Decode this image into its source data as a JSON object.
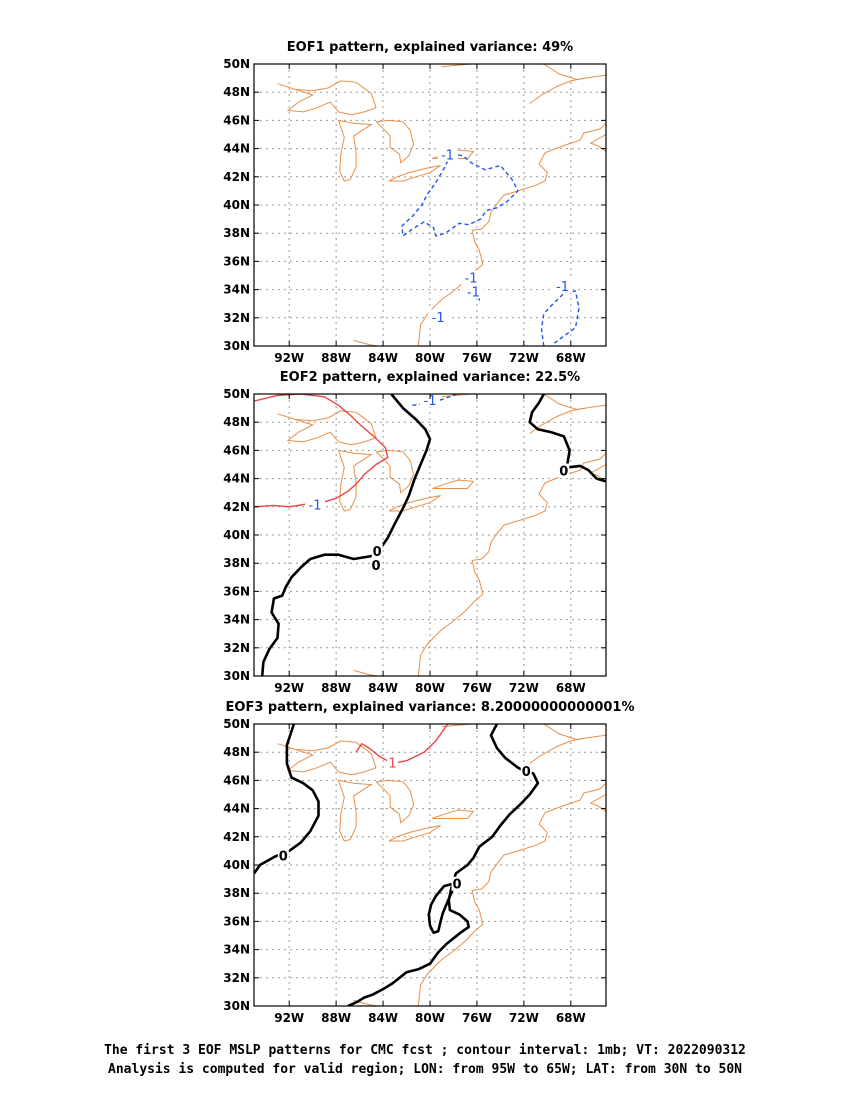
{
  "chart_data": [
    {
      "type": "contour",
      "title": "EOF1 pattern, explained variance: 49%",
      "contour_labels": [
        {
          "text": "-1",
          "lon": -78.5,
          "lat": 43.5
        },
        {
          "text": "-1",
          "lon": -76.5,
          "lat": 34.8
        },
        {
          "text": "-1",
          "lon": -76.3,
          "lat": 33.8
        },
        {
          "text": "-1",
          "lon": -79.3,
          "lat": 32.0
        },
        {
          "text": "-1",
          "lon": -68.7,
          "lat": 34.2
        }
      ],
      "contours": [
        {
          "level": -1,
          "style": "dashed",
          "color": "#2255ee",
          "points": [
            [
              -78.2,
              43.6
            ],
            [
              -77.2,
              43.5
            ],
            [
              -76.5,
              43.0
            ],
            [
              -75.3,
              42.5
            ],
            [
              -74.0,
              42.8
            ],
            [
              -73.0,
              41.8
            ],
            [
              -72.5,
              41.0
            ],
            [
              -73.5,
              40.2
            ],
            [
              -74.3,
              39.8
            ],
            [
              -75.2,
              39.6
            ],
            [
              -75.7,
              39.0
            ],
            [
              -76.7,
              38.6
            ],
            [
              -77.5,
              38.7
            ],
            [
              -78.7,
              38.0
            ],
            [
              -79.5,
              37.8
            ],
            [
              -79.7,
              38.4
            ],
            [
              -80.5,
              38.8
            ],
            [
              -81.5,
              38.3
            ],
            [
              -82.3,
              37.8
            ],
            [
              -82.4,
              38.5
            ],
            [
              -81.5,
              39.2
            ],
            [
              -80.7,
              40.0
            ],
            [
              -80.2,
              40.8
            ],
            [
              -79.5,
              41.6
            ],
            [
              -78.8,
              42.6
            ],
            [
              -78.2,
              43.6
            ]
          ]
        },
        {
          "level": -1,
          "style": "dashed",
          "color": "#2255ee",
          "points": [
            [
              -75.8,
              33.5
            ],
            [
              -75.8,
              33.0
            ]
          ]
        },
        {
          "level": -1,
          "style": "dashed",
          "color": "#2255ee",
          "points": [
            [
              -70.3,
              30.0
            ],
            [
              -70.5,
              31.2
            ],
            [
              -70.3,
              32.3
            ],
            [
              -69.5,
              33.0
            ],
            [
              -68.5,
              33.8
            ],
            [
              -67.6,
              33.9
            ],
            [
              -67.3,
              32.7
            ],
            [
              -67.6,
              31.3
            ],
            [
              -68.6,
              30.7
            ],
            [
              -69.4,
              30.2
            ],
            [
              -69.6,
              30.0
            ]
          ]
        }
      ]
    },
    {
      "type": "contour",
      "title": "EOF2 pattern, explained variance: 22.5%",
      "contour_labels": [
        {
          "text": "-1",
          "lon": -80.0,
          "lat": 49.5
        },
        {
          "text": "-1",
          "lon": -89.8,
          "lat": 42.1
        },
        {
          "text": "0",
          "lon": -84.5,
          "lat": 38.8
        },
        {
          "text": "0",
          "lon": -84.6,
          "lat": 37.8
        },
        {
          "text": "0",
          "lon": -68.6,
          "lat": 44.5
        }
      ],
      "contours": [
        {
          "level": -1,
          "style": "dashed",
          "color": "#2255ee",
          "points": [
            [
              -81.5,
              49.2
            ],
            [
              -80.5,
              49.3
            ],
            [
              -79.0,
              49.6
            ],
            [
              -77.7,
              50.0
            ]
          ]
        },
        {
          "level": 1,
          "style": "solid",
          "color": "#ee4444",
          "points": [
            [
              -95.0,
              49.5
            ],
            [
              -93.0,
              49.9
            ],
            [
              -91.0,
              50.0
            ],
            [
              -89.0,
              49.8
            ],
            [
              -87.8,
              49.2
            ],
            [
              -86.8,
              48.5
            ],
            [
              -85.8,
              47.7
            ],
            [
              -84.8,
              47.0
            ],
            [
              -83.8,
              46.2
            ],
            [
              -83.6,
              45.5
            ],
            [
              -84.6,
              45.0
            ],
            [
              -85.6,
              44.3
            ],
            [
              -86.3,
              43.6
            ],
            [
              -87.0,
              43.1
            ],
            [
              -88.0,
              42.6
            ],
            [
              -89.2,
              42.3
            ],
            [
              -90.5,
              42.2
            ],
            [
              -92.0,
              42.0
            ],
            [
              -93.3,
              42.1
            ],
            [
              -95.0,
              42.0
            ]
          ]
        },
        {
          "level": 0,
          "style": "solid",
          "color": "#000000",
          "points": [
            [
              -83.3,
              50.0
            ],
            [
              -82.3,
              49.0
            ],
            [
              -81.2,
              48.2
            ],
            [
              -80.4,
              47.5
            ],
            [
              -80.0,
              46.8
            ],
            [
              -80.3,
              46.0
            ],
            [
              -80.8,
              45.0
            ],
            [
              -81.3,
              44.0
            ],
            [
              -81.8,
              42.8
            ],
            [
              -82.3,
              41.9
            ],
            [
              -83.0,
              40.8
            ],
            [
              -83.6,
              39.8
            ],
            [
              -84.1,
              39.2
            ],
            [
              -84.4,
              38.8
            ],
            [
              -85.0,
              38.5
            ],
            [
              -86.5,
              38.3
            ],
            [
              -87.8,
              38.6
            ],
            [
              -89.0,
              38.6
            ],
            [
              -90.2,
              38.3
            ],
            [
              -91.0,
              37.7
            ],
            [
              -91.8,
              37.0
            ],
            [
              -92.3,
              36.3
            ],
            [
              -92.6,
              35.7
            ],
            [
              -93.3,
              35.5
            ],
            [
              -93.5,
              34.5
            ],
            [
              -92.9,
              33.7
            ],
            [
              -93.0,
              32.7
            ],
            [
              -93.7,
              31.9
            ],
            [
              -94.2,
              31.0
            ],
            [
              -94.3,
              30.0
            ]
          ]
        },
        {
          "level": 0,
          "style": "solid",
          "color": "#000000",
          "points": [
            [
              -70.3,
              50.0
            ],
            [
              -70.7,
              49.4
            ],
            [
              -71.3,
              48.7
            ],
            [
              -71.5,
              48.0
            ],
            [
              -70.8,
              47.5
            ],
            [
              -69.7,
              47.3
            ],
            [
              -68.6,
              47.0
            ],
            [
              -68.1,
              46.0
            ],
            [
              -68.3,
              45.0
            ],
            [
              -68.8,
              44.5
            ],
            [
              -68.2,
              44.8
            ],
            [
              -67.2,
              44.9
            ],
            [
              -66.5,
              44.6
            ],
            [
              -65.8,
              44.0
            ],
            [
              -65.0,
              43.8
            ]
          ]
        }
      ]
    },
    {
      "type": "contour",
      "title": "EOF3 pattern, explained variance: 8.20000000000001%",
      "contour_labels": [
        {
          "text": "1",
          "lon": -83.2,
          "lat": 47.2
        },
        {
          "text": "0",
          "lon": -92.5,
          "lat": 40.6
        },
        {
          "text": "0",
          "lon": -71.8,
          "lat": 46.6
        },
        {
          "text": "0",
          "lon": -77.7,
          "lat": 38.6
        }
      ],
      "contours": [
        {
          "level": 1,
          "style": "solid",
          "color": "#ee4444",
          "points": [
            [
              -86.3,
              48.0
            ],
            [
              -85.8,
              48.6
            ],
            [
              -85.2,
              48.3
            ],
            [
              -84.3,
              47.7
            ],
            [
              -83.2,
              47.2
            ],
            [
              -82.0,
              47.4
            ],
            [
              -80.5,
              48.0
            ],
            [
              -79.5,
              48.8
            ],
            [
              -78.5,
              50.0
            ]
          ]
        },
        {
          "level": 0,
          "style": "solid",
          "color": "#000000",
          "points": [
            [
              -95.0,
              39.4
            ],
            [
              -94.5,
              40.0
            ],
            [
              -93.2,
              40.6
            ],
            [
              -92.0,
              41.0
            ],
            [
              -91.0,
              41.6
            ],
            [
              -90.2,
              42.4
            ],
            [
              -89.5,
              43.5
            ],
            [
              -89.5,
              44.5
            ],
            [
              -90.0,
              45.3
            ],
            [
              -90.8,
              45.8
            ],
            [
              -91.8,
              46.2
            ],
            [
              -92.2,
              47.2
            ],
            [
              -92.2,
              48.5
            ],
            [
              -91.6,
              50.0
            ]
          ]
        },
        {
          "level": 0,
          "style": "solid",
          "color": "#000000",
          "points": [
            [
              -74.3,
              50.0
            ],
            [
              -74.8,
              49.2
            ],
            [
              -74.3,
              48.3
            ],
            [
              -73.6,
              47.6
            ],
            [
              -72.5,
              46.9
            ],
            [
              -71.8,
              46.6
            ],
            [
              -71.2,
              46.5
            ],
            [
              -70.8,
              45.8
            ],
            [
              -71.5,
              45.0
            ],
            [
              -72.3,
              44.3
            ],
            [
              -73.2,
              43.6
            ],
            [
              -74.0,
              42.8
            ],
            [
              -74.7,
              42.0
            ],
            [
              -75.8,
              41.3
            ],
            [
              -76.3,
              40.5
            ],
            [
              -76.8,
              40.0
            ],
            [
              -77.8,
              39.4
            ],
            [
              -78.2,
              38.3
            ],
            [
              -78.4,
              37.5
            ],
            [
              -78.3,
              36.8
            ],
            [
              -77.5,
              36.5
            ],
            [
              -76.8,
              36.0
            ],
            [
              -76.7,
              35.6
            ],
            [
              -77.4,
              35.2
            ],
            [
              -78.0,
              34.8
            ],
            [
              -78.6,
              34.4
            ],
            [
              -79.3,
              33.8
            ],
            [
              -80.0,
              33.0
            ],
            [
              -81.0,
              32.6
            ],
            [
              -82.0,
              32.4
            ],
            [
              -82.6,
              32.0
            ],
            [
              -83.2,
              31.6
            ],
            [
              -84.0,
              31.2
            ],
            [
              -84.9,
              30.8
            ],
            [
              -85.6,
              30.6
            ],
            [
              -86.2,
              30.3
            ],
            [
              -87.0,
              30.0
            ]
          ]
        },
        {
          "level": 0,
          "style": "solid",
          "color": "#000000",
          "points": [
            [
              -77.9,
              38.7
            ],
            [
              -78.8,
              38.5
            ],
            [
              -79.5,
              37.8
            ],
            [
              -79.9,
              37.2
            ],
            [
              -80.1,
              36.5
            ],
            [
              -80.0,
              35.7
            ],
            [
              -79.7,
              35.2
            ],
            [
              -79.3,
              35.3
            ],
            [
              -79.1,
              36.0
            ],
            [
              -78.9,
              36.6
            ],
            [
              -78.5,
              37.4
            ],
            [
              -78.1,
              38.2
            ],
            [
              -77.9,
              38.7
            ]
          ]
        }
      ]
    }
  ],
  "map": {
    "lon_range": [
      -95,
      -65
    ],
    "lat_range": [
      30,
      50
    ],
    "grid": true,
    "x_ticks": [
      {
        "lon": -92,
        "label": "92W"
      },
      {
        "lon": -88,
        "label": "88W"
      },
      {
        "lon": -84,
        "label": "84W"
      },
      {
        "lon": -80,
        "label": "80W"
      },
      {
        "lon": -76,
        "label": "76W"
      },
      {
        "lon": -72,
        "label": "72W"
      },
      {
        "lon": -68,
        "label": "68W"
      }
    ],
    "y_ticks": [
      {
        "lat": 30,
        "label": "30N"
      },
      {
        "lat": 32,
        "label": "32N"
      },
      {
        "lat": 34,
        "label": "34N"
      },
      {
        "lat": 36,
        "label": "36N"
      },
      {
        "lat": 38,
        "label": "38N"
      },
      {
        "lat": 40,
        "label": "40N"
      },
      {
        "lat": 42,
        "label": "42N"
      },
      {
        "lat": 44,
        "label": "44N"
      },
      {
        "lat": 46,
        "label": "46N"
      },
      {
        "lat": 48,
        "label": "48N"
      },
      {
        "lat": 50,
        "label": "50N"
      }
    ],
    "coastline_color": "#e8904a",
    "grid_color": "#999999"
  },
  "caption": {
    "line1": "The first 3 EOF MSLP patterns for CMC fcst ; contour interval: 1mb; VT: 2022090312",
    "line2": "Analysis is computed for valid region; LON: from 95W to 65W; LAT: from 30N to 50N"
  }
}
